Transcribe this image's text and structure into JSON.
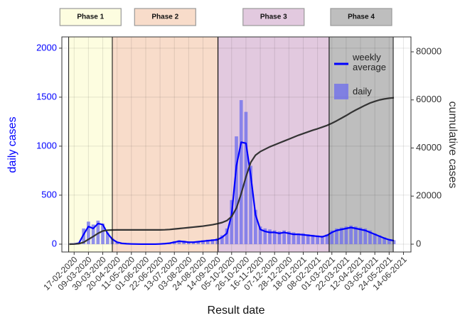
{
  "chart_data": {
    "type": "combo",
    "x_label": "Result date",
    "y_label": "daily cases",
    "y2_label": "cumulative cases",
    "x": [
      "2020-02-10",
      "2020-02-17",
      "2020-02-24",
      "2020-03-02",
      "2020-03-09",
      "2020-03-16",
      "2020-03-23",
      "2020-03-30",
      "2020-04-06",
      "2020-04-13",
      "2020-04-20",
      "2020-04-27",
      "2020-05-04",
      "2020-05-11",
      "2020-05-18",
      "2020-05-25",
      "2020-06-01",
      "2020-06-08",
      "2020-06-15",
      "2020-06-22",
      "2020-06-29",
      "2020-07-06",
      "2020-07-13",
      "2020-07-20",
      "2020-07-27",
      "2020-08-03",
      "2020-08-10",
      "2020-08-17",
      "2020-08-24",
      "2020-08-31",
      "2020-09-07",
      "2020-09-14",
      "2020-09-21",
      "2020-09-28",
      "2020-10-05",
      "2020-10-12",
      "2020-10-19",
      "2020-10-26",
      "2020-11-02",
      "2020-11-09",
      "2020-11-16",
      "2020-11-23",
      "2020-11-30",
      "2020-12-07",
      "2020-12-14",
      "2020-12-21",
      "2020-12-28",
      "2021-01-04",
      "2021-01-11",
      "2021-01-18",
      "2021-01-25",
      "2021-02-01",
      "2021-02-08",
      "2021-02-15",
      "2021-02-22",
      "2021-03-01",
      "2021-03-08",
      "2021-03-15",
      "2021-03-22",
      "2021-03-29",
      "2021-04-05",
      "2021-04-12",
      "2021-04-19",
      "2021-04-26",
      "2021-05-03",
      "2021-05-10",
      "2021-05-17",
      "2021-05-24",
      "2021-05-31"
    ],
    "series": [
      {
        "name": "daily",
        "type": "bar",
        "color": "#6b6bee",
        "values": [
          0,
          3,
          15,
          160,
          230,
          200,
          240,
          210,
          120,
          60,
          20,
          10,
          5,
          3,
          2,
          1,
          0,
          0,
          0,
          3,
          8,
          15,
          30,
          40,
          35,
          25,
          25,
          30,
          40,
          45,
          50,
          60,
          90,
          160,
          450,
          1100,
          1470,
          1350,
          800,
          350,
          180,
          160,
          150,
          140,
          130,
          140,
          130,
          120,
          110,
          110,
          100,
          95,
          90,
          85,
          100,
          140,
          160,
          170,
          180,
          190,
          180,
          170,
          160,
          140,
          110,
          90,
          70,
          50,
          40
        ]
      },
      {
        "name": "weekly average",
        "type": "line",
        "color": "#0000ff",
        "values": [
          0,
          2,
          10,
          100,
          180,
          160,
          210,
          200,
          110,
          50,
          20,
          8,
          4,
          2,
          1,
          0,
          0,
          0,
          0,
          2,
          5,
          10,
          20,
          30,
          25,
          20,
          20,
          25,
          30,
          35,
          40,
          45,
          70,
          110,
          300,
          800,
          1040,
          1030,
          700,
          300,
          150,
          130,
          120,
          120,
          110,
          120,
          110,
          100,
          100,
          95,
          90,
          85,
          80,
          75,
          90,
          120,
          140,
          150,
          160,
          170,
          160,
          150,
          140,
          120,
          100,
          80,
          60,
          45,
          35
        ]
      },
      {
        "type": "line",
        "axis": "y2",
        "color": "#333333",
        "values": [
          0,
          50,
          200,
          800,
          2000,
          3200,
          4500,
          5500,
          5800,
          5900,
          5950,
          5950,
          5950,
          5950,
          5950,
          5950,
          5950,
          5950,
          5950,
          5950,
          6000,
          6100,
          6300,
          6500,
          6700,
          6900,
          7100,
          7300,
          7500,
          7800,
          8100,
          8500,
          9000,
          9800,
          11500,
          15000,
          21000,
          28000,
          34000,
          37000,
          38500,
          39500,
          40500,
          41300,
          42100,
          42900,
          43700,
          44500,
          45300,
          46000,
          46700,
          47400,
          48000,
          48700,
          49400,
          50300,
          51300,
          52400,
          53500,
          54700,
          55800,
          56800,
          57800,
          58700,
          59400,
          60000,
          60400,
          60700,
          60900
        ]
      }
    ],
    "phases": [
      {
        "label": "Phase 1",
        "start": "2020-02-09",
        "end": "2020-04-13",
        "color": "#fdfde0"
      },
      {
        "label": "Phase 2",
        "start": "2020-04-13",
        "end": "2020-09-15",
        "color": "#f8dcca"
      },
      {
        "label": "Phase 3",
        "start": "2020-09-15",
        "end": "2021-02-25",
        "color": "#e2c9df"
      },
      {
        "label": "Phase 4",
        "start": "2021-02-25",
        "end": "2021-05-30",
        "color": "#bebebe"
      }
    ],
    "xlim": [
      "2020-01-30",
      "2021-06-25"
    ],
    "xticks": [
      {
        "value": "2020-02-17",
        "label": "17-02-2020"
      },
      {
        "value": "2020-03-09",
        "label": "09-03-2020"
      },
      {
        "value": "2020-03-30",
        "label": "30-03-2020"
      },
      {
        "value": "2020-04-20",
        "label": "20-04-2020"
      },
      {
        "value": "2020-05-11",
        "label": "11-05-2020"
      },
      {
        "value": "2020-06-01",
        "label": "01-06-2020"
      },
      {
        "value": "2020-06-22",
        "label": "22-06-2020"
      },
      {
        "value": "2020-07-13",
        "label": "13-07-2020"
      },
      {
        "value": "2020-08-03",
        "label": "03-08-2020"
      },
      {
        "value": "2020-08-24",
        "label": "24-08-2020"
      },
      {
        "value": "2020-09-14",
        "label": "14-09-2020"
      },
      {
        "value": "2020-10-05",
        "label": "05-10-2020"
      },
      {
        "value": "2020-10-26",
        "label": "26-10-2020"
      },
      {
        "value": "2020-11-16",
        "label": "16-11-2020"
      },
      {
        "value": "2020-12-07",
        "label": "07-12-2020"
      },
      {
        "value": "2020-12-28",
        "label": "28-12-2020"
      },
      {
        "value": "2021-01-18",
        "label": "18-01-2021"
      },
      {
        "value": "2021-02-08",
        "label": "08-02-2021"
      },
      {
        "value": "2021-03-01",
        "label": "01-03-2021"
      },
      {
        "value": "2021-03-22",
        "label": "22-03-2021"
      },
      {
        "value": "2021-04-12",
        "label": "12-04-2021"
      },
      {
        "value": "2021-05-03",
        "label": "03-05-2021"
      },
      {
        "value": "2021-05-24",
        "label": "24-05-2021"
      },
      {
        "value": "2021-06-14",
        "label": "14-06-2021"
      }
    ],
    "ylim": [
      -80,
      2115
    ],
    "yticks": [
      0,
      500,
      1000,
      1500,
      2000
    ],
    "y2lim": [
      -3250,
      86200
    ],
    "y2ticks": [
      0,
      20000,
      40000,
      60000,
      80000
    ],
    "grid": true,
    "legend": "top-right"
  }
}
